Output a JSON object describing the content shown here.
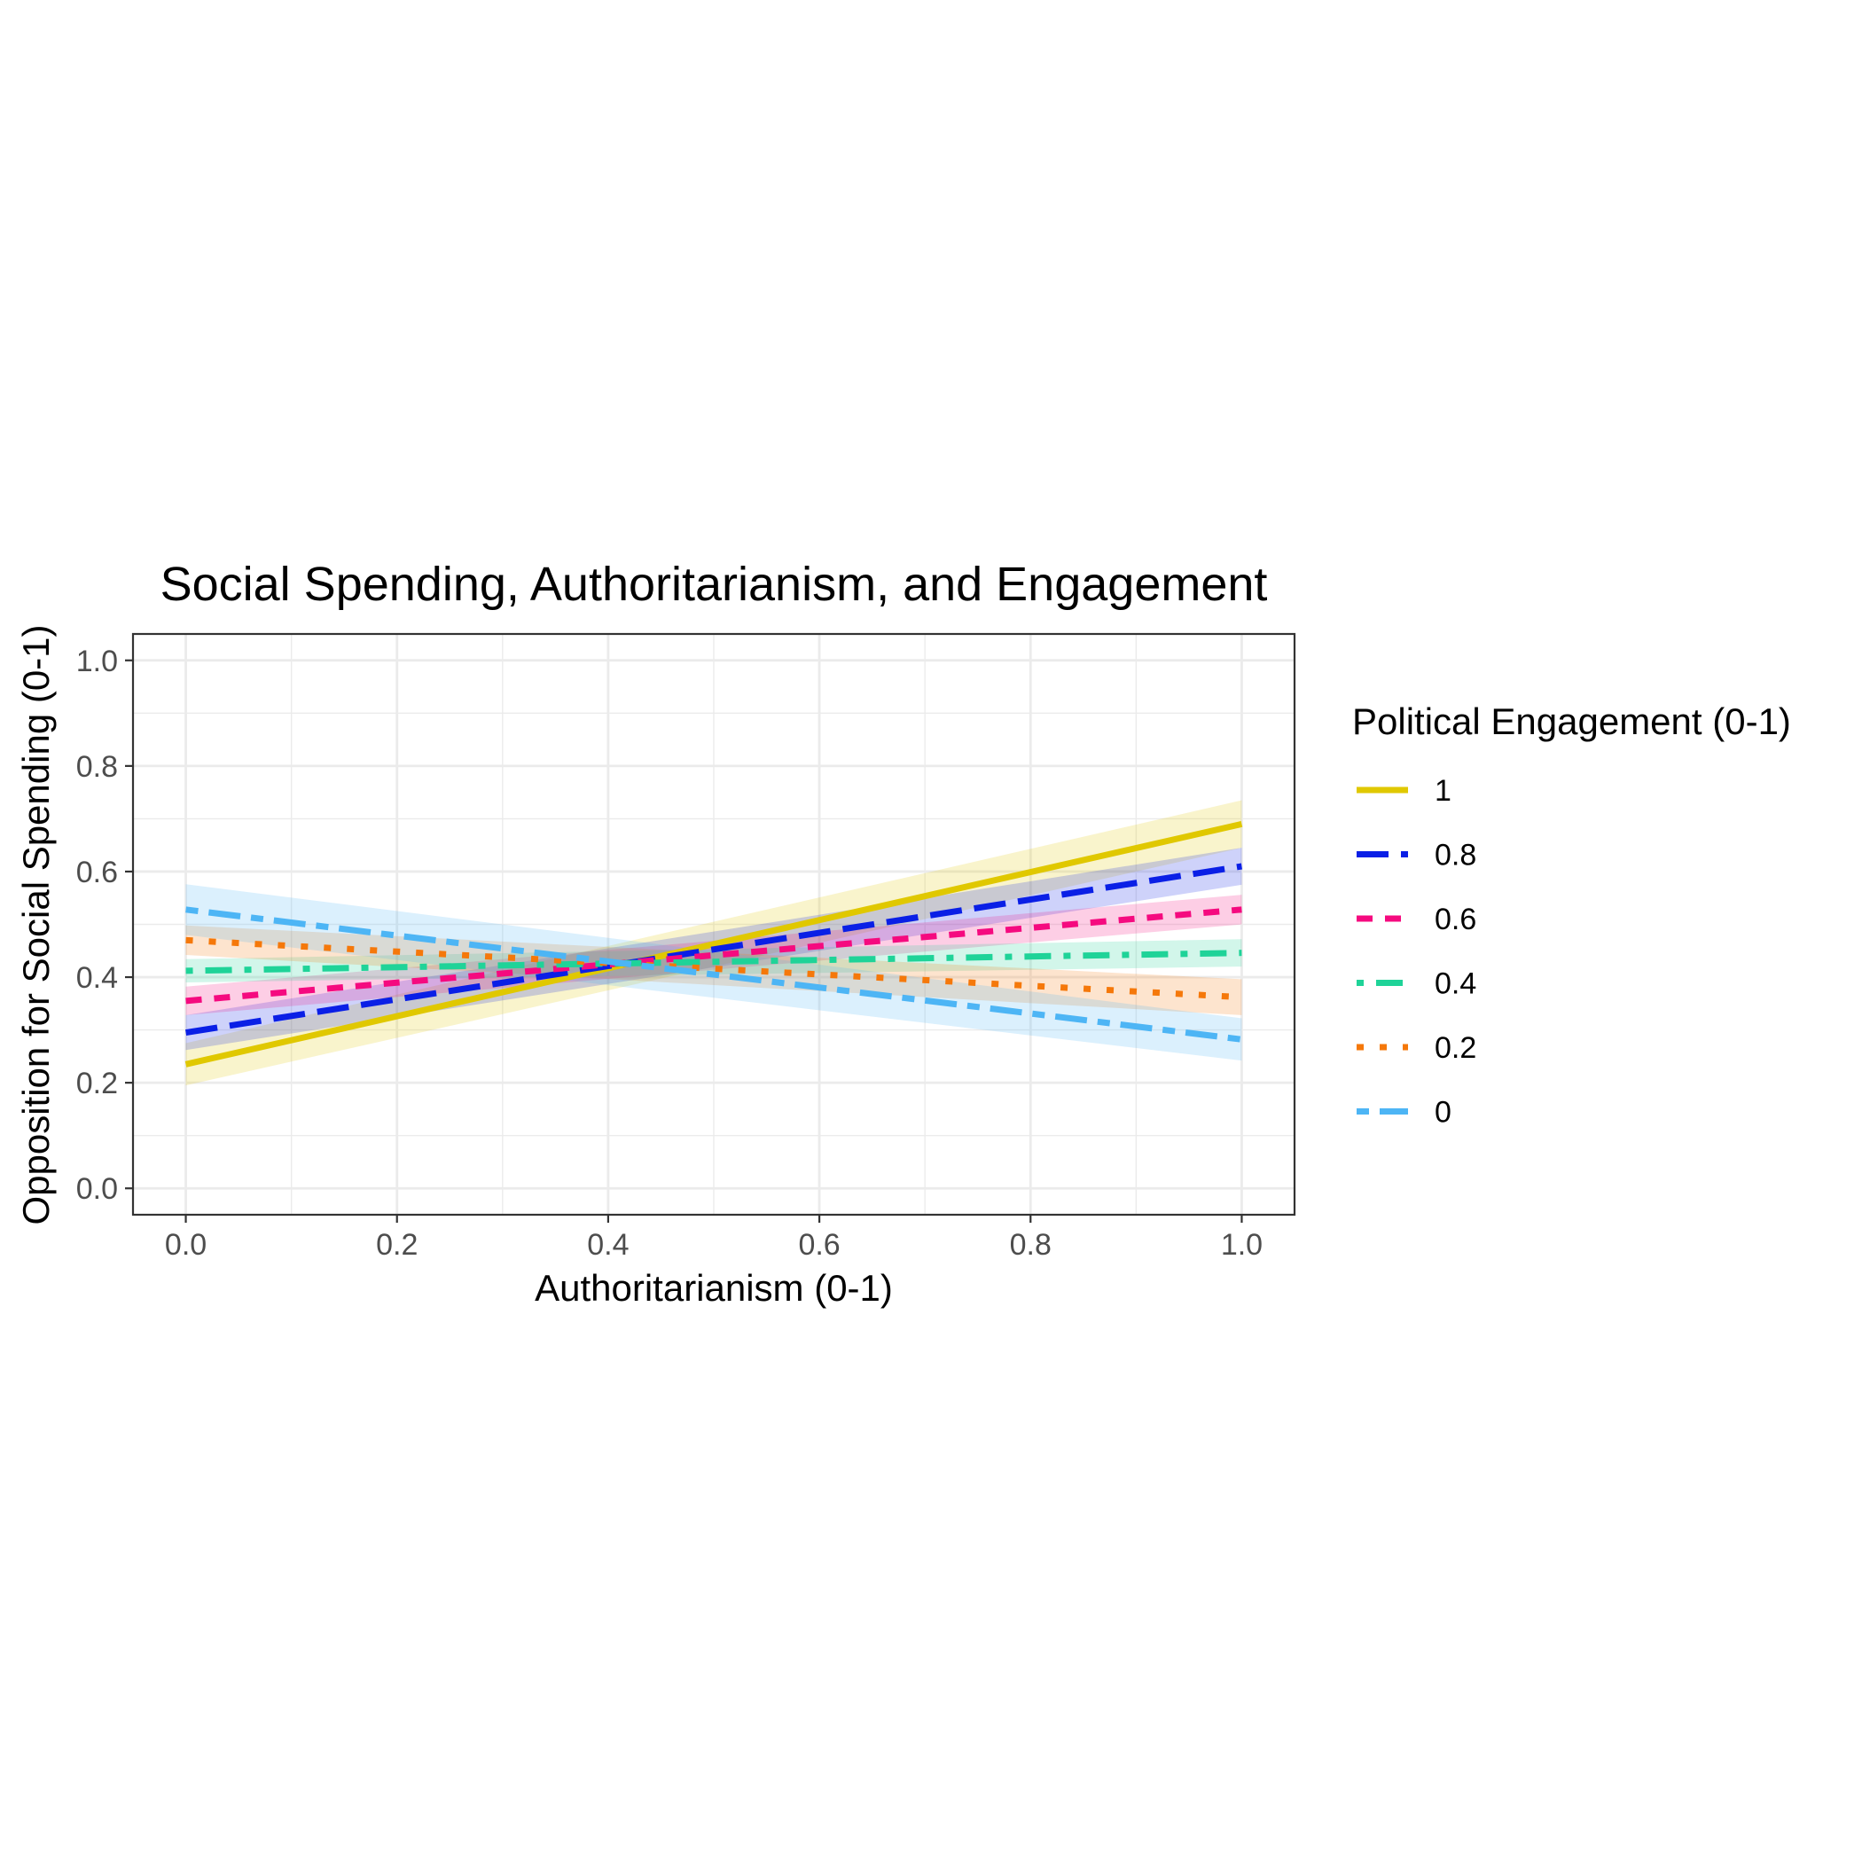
{
  "chart_data": {
    "type": "line",
    "title": "Social Spending, Authoritarianism, and Engagement",
    "xlabel": "Authoritarianism (0-1)",
    "ylabel": "Opposition for Social Spending (0-1)",
    "xlim": [
      -0.05,
      1.05
    ],
    "ylim": [
      -0.05,
      1.05
    ],
    "xticks": [
      0.0,
      0.2,
      0.4,
      0.6,
      0.8,
      1.0
    ],
    "xtick_labels": [
      "0.0",
      "0.2",
      "0.4",
      "0.6",
      "0.8",
      "1.0"
    ],
    "yticks": [
      0.0,
      0.2,
      0.4,
      0.6,
      0.8,
      1.0
    ],
    "ytick_labels": [
      "0.0",
      "0.2",
      "0.4",
      "0.6",
      "0.8",
      "1.0"
    ],
    "grid": true,
    "legend": {
      "title": "Political Engagement (0-1)",
      "position": "right"
    },
    "series": [
      {
        "name": "1",
        "color": "#E0C800",
        "linestyle": "solid",
        "x": [
          0,
          1
        ],
        "y": [
          0.235,
          0.69
        ],
        "ci_lower": [
          0.195,
          0.645
        ],
        "ci_upper": [
          0.275,
          0.735
        ]
      },
      {
        "name": "0.8",
        "color": "#0A1FE6",
        "linestyle": "longdash",
        "x": [
          0,
          1
        ],
        "y": [
          0.295,
          0.61
        ],
        "ci_lower": [
          0.262,
          0.575
        ],
        "ci_upper": [
          0.328,
          0.645
        ]
      },
      {
        "name": "0.6",
        "color": "#F50A7F",
        "linestyle": "dashed",
        "x": [
          0,
          1
        ],
        "y": [
          0.355,
          0.528
        ],
        "ci_lower": [
          0.328,
          0.5
        ],
        "ci_upper": [
          0.382,
          0.556
        ]
      },
      {
        "name": "0.4",
        "color": "#1FD398",
        "linestyle": "dotdash",
        "x": [
          0,
          1
        ],
        "y": [
          0.412,
          0.446
        ],
        "ci_lower": [
          0.39,
          0.42
        ],
        "ci_upper": [
          0.434,
          0.472
        ]
      },
      {
        "name": "0.2",
        "color": "#F5780A",
        "linestyle": "dotted",
        "x": [
          0,
          1
        ],
        "y": [
          0.47,
          0.362
        ],
        "ci_lower": [
          0.442,
          0.328
        ],
        "ci_upper": [
          0.498,
          0.396
        ]
      },
      {
        "name": "0",
        "color": "#4DB5F5",
        "linestyle": "twodash",
        "x": [
          0,
          1
        ],
        "y": [
          0.528,
          0.282
        ],
        "ci_lower": [
          0.48,
          0.242
        ],
        "ci_upper": [
          0.576,
          0.322
        ]
      }
    ]
  }
}
